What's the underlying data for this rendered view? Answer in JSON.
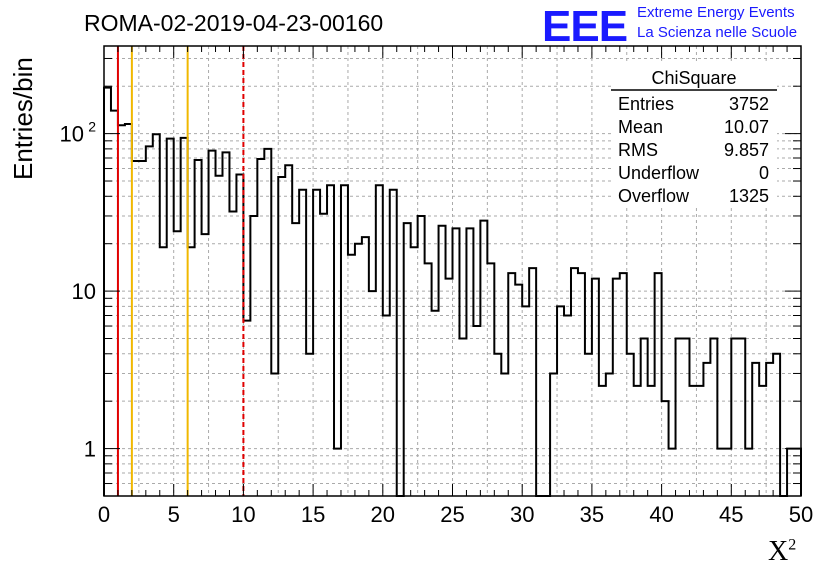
{
  "header": {
    "run_title": "ROMA-02-2019-04-23-00160",
    "logo": "EEE",
    "logo_line1": "Extreme Energy Events",
    "logo_line2": "La Scienza nelle Scuole"
  },
  "chart_data": {
    "type": "histogram",
    "xlabel_base": "X",
    "xlabel_sup": "2",
    "ylabel": "Entries/bin",
    "xlim": [
      0,
      50
    ],
    "ylim": [
      0.5,
      360
    ],
    "yscale": "log",
    "grid": true,
    "bin_width": 0.5,
    "x_ticks": [
      "0",
      "5",
      "10",
      "15",
      "20",
      "25",
      "30",
      "35",
      "40",
      "45",
      "50"
    ],
    "y_ticks": [
      {
        "value": 1,
        "label": "1"
      },
      {
        "value": 10,
        "label": "10"
      },
      {
        "value": 100,
        "label": "10",
        "sup": "2"
      }
    ],
    "values": [
      196,
      140,
      113,
      115,
      67,
      67,
      83,
      99,
      19,
      93,
      24,
      94,
      19,
      68,
      23,
      78,
      54,
      76,
      32,
      55,
      6.5,
      30,
      69,
      80,
      3,
      53,
      63,
      27,
      44,
      4,
      44,
      31,
      47,
      1,
      47,
      17,
      20,
      22,
      10,
      47,
      7,
      44,
      0,
      27,
      19,
      30,
      15,
      7.5,
      26,
      12,
      25,
      5,
      25,
      6,
      28,
      15,
      4,
      3,
      13,
      11,
      8,
      14,
      0,
      0,
      3,
      8,
      7,
      14,
      13,
      4,
      12,
      2.5,
      3,
      12,
      13,
      4,
      2.5,
      5,
      2.5,
      13,
      2,
      1,
      5,
      5,
      2.5,
      2.5,
      3.5,
      5,
      1,
      1,
      5,
      5,
      1,
      3.5,
      2.5,
      3.5,
      4,
      0,
      1,
      1
    ],
    "cut_lines": [
      {
        "x": 1,
        "color": "#e00000",
        "style": "solid"
      },
      {
        "x": 2,
        "color": "#f0b800",
        "style": "solid"
      },
      {
        "x": 6,
        "color": "#f0b800",
        "style": "solid"
      },
      {
        "x": 10,
        "color": "#e00000",
        "style": "dashed"
      }
    ],
    "stats": {
      "title": "ChiSquare",
      "rows": [
        {
          "label": "Entries",
          "value": "3752"
        },
        {
          "label": "Mean",
          "value": "10.07"
        },
        {
          "label": "RMS",
          "value": "9.857"
        },
        {
          "label": "Underflow",
          "value": "0"
        },
        {
          "label": "Overflow",
          "value": "1325"
        }
      ]
    }
  }
}
